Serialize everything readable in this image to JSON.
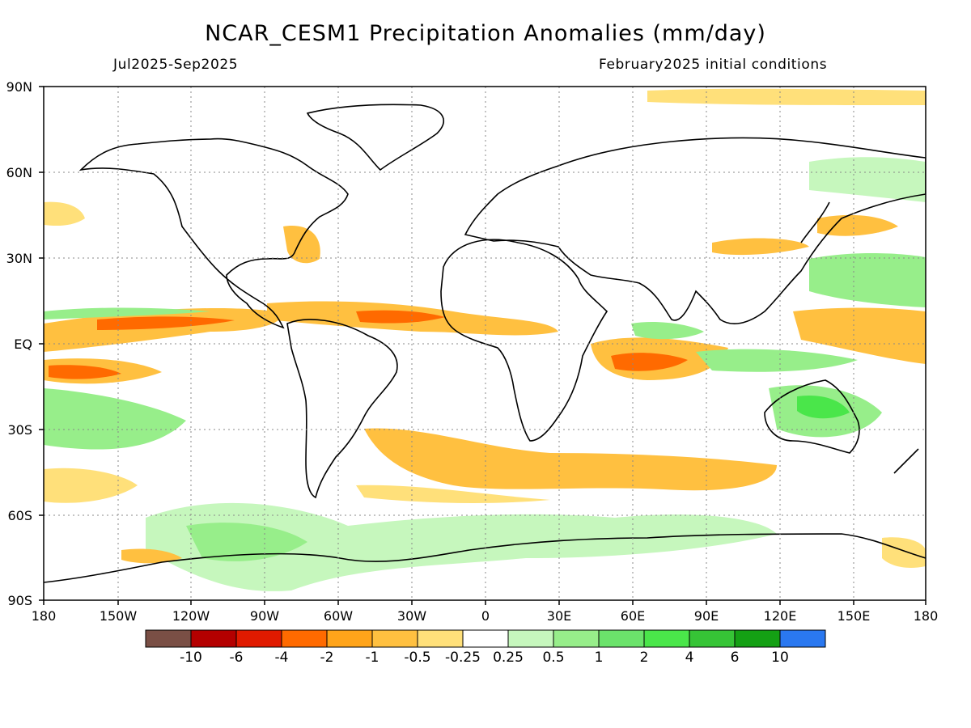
{
  "title": "NCAR_CESM1 Precipitation Anomalies (mm/day)",
  "period": "Jul2025-Sep2025",
  "init": "February2025 initial conditions",
  "map": {
    "lat_ticks": [
      "90N",
      "60N",
      "30N",
      "EQ",
      "30S",
      "60S",
      "90S"
    ],
    "lon_ticks": [
      "180",
      "150W",
      "120W",
      "90W",
      "60W",
      "30W",
      "0",
      "30E",
      "60E",
      "90E",
      "120E",
      "150E",
      "180"
    ]
  },
  "colorbar": {
    "labels": [
      "-10",
      "-6",
      "-4",
      "-2",
      "-1",
      "-0.5",
      "-0.25",
      "0.25",
      "0.5",
      "1",
      "2",
      "4",
      "6",
      "10"
    ],
    "colors": [
      "#7a4f45",
      "#b40000",
      "#e01a00",
      "#ff6a00",
      "#ffa41a",
      "#ffc040",
      "#ffe07a",
      "#ffffff",
      "#c6f7bd",
      "#97ee8a",
      "#6be36b",
      "#4ae64a",
      "#36c436",
      "#14a014",
      "#2a78f0"
    ]
  },
  "anomaly_colors": {
    "dry_strong": "#ff6a00",
    "dry": "#ffc040",
    "dry_weak": "#ffe07a",
    "wet_weak": "#c6f7bd",
    "wet": "#97ee8a",
    "wet_strong": "#4ae64a"
  }
}
